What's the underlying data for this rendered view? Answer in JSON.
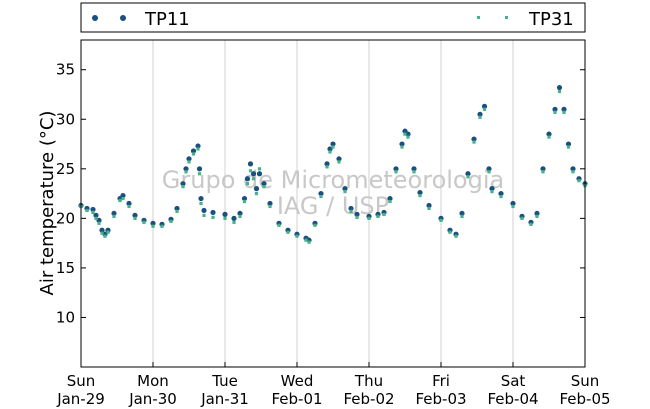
{
  "chart_data": {
    "type": "scatter",
    "title": "",
    "xlabel": "",
    "ylabel": "Air temperature (°C)",
    "ylim": [
      5,
      38
    ],
    "yticks": [
      10,
      15,
      20,
      25,
      30,
      35
    ],
    "x_ticks": [
      {
        "day": "Sun",
        "date": "Jan-29"
      },
      {
        "day": "Mon",
        "date": "Jan-30"
      },
      {
        "day": "Tue",
        "date": "Jan-31"
      },
      {
        "day": "Wed",
        "date": "Feb-01"
      },
      {
        "day": "Thu",
        "date": "Feb-02"
      },
      {
        "day": "Fri",
        "date": "Feb-03"
      },
      {
        "day": "Sat",
        "date": "Feb-04"
      },
      {
        "day": "Sun",
        "date": "Feb-05"
      }
    ],
    "grid": "vertical",
    "legend_position": "top",
    "watermark": [
      "Grupo de Micrometeorologia",
      "IAG / USP"
    ],
    "series": [
      {
        "name": "TP11",
        "color": "#1a4f80",
        "marker": "circle",
        "points": [
          [
            "Jan-29 00:00",
            21.3
          ],
          [
            "Jan-29 02:00",
            21.0
          ],
          [
            "Jan-29 04:00",
            20.9
          ],
          [
            "Jan-29 05:00",
            20.3
          ],
          [
            "Jan-29 06:00",
            19.8
          ],
          [
            "Jan-29 07:00",
            18.8
          ],
          [
            "Jan-29 08:00",
            18.4
          ],
          [
            "Jan-29 09:00",
            18.8
          ],
          [
            "Jan-29 11:00",
            20.5
          ],
          [
            "Jan-29 13:00",
            22.0
          ],
          [
            "Jan-29 14:00",
            22.3
          ],
          [
            "Jan-29 16:00",
            21.5
          ],
          [
            "Jan-29 18:00",
            20.3
          ],
          [
            "Jan-29 21:00",
            19.8
          ],
          [
            "Jan-30 00:00",
            19.5
          ],
          [
            "Jan-30 03:00",
            19.4
          ],
          [
            "Jan-30 06:00",
            19.9
          ],
          [
            "Jan-30 08:00",
            21.0
          ],
          [
            "Jan-30 10:00",
            23.5
          ],
          [
            "Jan-30 11:00",
            25.0
          ],
          [
            "Jan-30 12:00",
            26.0
          ],
          [
            "Jan-30 13:30",
            26.8
          ],
          [
            "Jan-30 15:00",
            27.3
          ],
          [
            "Jan-30 15:30",
            25.0
          ],
          [
            "Jan-30 16:00",
            22.0
          ],
          [
            "Jan-30 17:00",
            20.8
          ],
          [
            "Jan-30 20:00",
            20.6
          ],
          [
            "Jan-31 00:00",
            20.4
          ],
          [
            "Jan-31 03:00",
            20.0
          ],
          [
            "Jan-31 05:00",
            20.5
          ],
          [
            "Jan-31 06:30",
            22.0
          ],
          [
            "Jan-31 07:30",
            24.0
          ],
          [
            "Jan-31 08:30",
            25.5
          ],
          [
            "Jan-31 09:30",
            24.5
          ],
          [
            "Jan-31 10:30",
            23.0
          ],
          [
            "Jan-31 11:30",
            24.5
          ],
          [
            "Jan-31 13:00",
            23.5
          ],
          [
            "Jan-31 15:00",
            21.5
          ],
          [
            "Jan-31 18:00",
            19.5
          ],
          [
            "Jan-31 21:00",
            18.8
          ],
          [
            "Feb-01 00:00",
            18.4
          ],
          [
            "Feb-01 03:00",
            18.0
          ],
          [
            "Feb-01 04:00",
            17.8
          ],
          [
            "Feb-01 06:00",
            19.5
          ],
          [
            "Feb-01 08:00",
            22.5
          ],
          [
            "Feb-01 10:00",
            25.5
          ],
          [
            "Feb-01 11:00",
            27.0
          ],
          [
            "Feb-01 12:00",
            27.5
          ],
          [
            "Feb-01 14:00",
            26.0
          ],
          [
            "Feb-01 16:00",
            23.0
          ],
          [
            "Feb-01 18:00",
            21.0
          ],
          [
            "Feb-01 20:00",
            20.4
          ],
          [
            "Feb-02 00:00",
            20.2
          ],
          [
            "Feb-02 03:00",
            20.4
          ],
          [
            "Feb-02 05:00",
            20.6
          ],
          [
            "Feb-02 07:00",
            22.0
          ],
          [
            "Feb-02 09:00",
            25.0
          ],
          [
            "Feb-02 11:00",
            27.5
          ],
          [
            "Feb-02 12:00",
            28.8
          ],
          [
            "Feb-02 13:00",
            28.5
          ],
          [
            "Feb-02 15:00",
            25.0
          ],
          [
            "Feb-02 17:00",
            22.6
          ],
          [
            "Feb-02 20:00",
            21.3
          ],
          [
            "Feb-03 00:00",
            20.0
          ],
          [
            "Feb-03 03:00",
            18.8
          ],
          [
            "Feb-03 05:00",
            18.4
          ],
          [
            "Feb-03 07:00",
            20.5
          ],
          [
            "Feb-03 09:00",
            24.5
          ],
          [
            "Feb-03 11:00",
            28.0
          ],
          [
            "Feb-03 13:00",
            30.5
          ],
          [
            "Feb-03 14:30",
            31.3
          ],
          [
            "Feb-03 16:00",
            25.0
          ],
          [
            "Feb-03 17:00",
            23.0
          ],
          [
            "Feb-03 20:00",
            22.5
          ],
          [
            "Feb-04 00:00",
            21.5
          ],
          [
            "Feb-04 03:00",
            20.2
          ],
          [
            "Feb-04 06:00",
            19.6
          ],
          [
            "Feb-04 08:00",
            20.5
          ],
          [
            "Feb-04 10:00",
            25.0
          ],
          [
            "Feb-04 12:00",
            28.5
          ],
          [
            "Feb-04 14:00",
            31.0
          ],
          [
            "Feb-04 15:30",
            33.2
          ],
          [
            "Feb-04 17:00",
            31.0
          ],
          [
            "Feb-04 18:30",
            27.5
          ],
          [
            "Feb-04 20:00",
            25.0
          ],
          [
            "Feb-04 22:00",
            24.0
          ],
          [
            "Feb-05 00:00",
            23.5
          ]
        ]
      },
      {
        "name": "TP31",
        "color": "#45b38a",
        "marker": "square",
        "points": [
          [
            "Jan-29 00:00",
            21.2
          ],
          [
            "Jan-29 02:00",
            20.8
          ],
          [
            "Jan-29 04:00",
            20.6
          ],
          [
            "Jan-29 05:00",
            20.0
          ],
          [
            "Jan-29 06:00",
            19.5
          ],
          [
            "Jan-29 07:00",
            18.5
          ],
          [
            "Jan-29 08:00",
            18.2
          ],
          [
            "Jan-29 09:00",
            18.6
          ],
          [
            "Jan-29 11:00",
            20.2
          ],
          [
            "Jan-29 13:00",
            21.8
          ],
          [
            "Jan-29 14:00",
            22.0
          ],
          [
            "Jan-29 16:00",
            21.2
          ],
          [
            "Jan-29 18:00",
            20.0
          ],
          [
            "Jan-29 21:00",
            19.6
          ],
          [
            "Jan-30 00:00",
            19.2
          ],
          [
            "Jan-30 03:00",
            19.2
          ],
          [
            "Jan-30 06:00",
            19.7
          ],
          [
            "Jan-30 08:00",
            20.7
          ],
          [
            "Jan-30 10:00",
            23.2
          ],
          [
            "Jan-30 11:00",
            24.7
          ],
          [
            "Jan-30 12:00",
            25.7
          ],
          [
            "Jan-30 13:30",
            26.5
          ],
          [
            "Jan-30 15:00",
            27.0
          ],
          [
            "Jan-30 15:30",
            24.5
          ],
          [
            "Jan-30 16:00",
            21.5
          ],
          [
            "Jan-30 17:00",
            20.3
          ],
          [
            "Jan-30 20:00",
            20.1
          ],
          [
            "Jan-31 00:00",
            20.0
          ],
          [
            "Jan-31 03:00",
            19.6
          ],
          [
            "Jan-31 05:00",
            20.2
          ],
          [
            "Jan-31 06:30",
            21.7
          ],
          [
            "Jan-31 07:30",
            23.5
          ],
          [
            "Jan-31 08:30",
            24.8
          ],
          [
            "Jan-31 09:30",
            24.0
          ],
          [
            "Jan-31 10:30",
            22.5
          ],
          [
            "Jan-31 11:30",
            25.0
          ],
          [
            "Jan-31 13:00",
            23.2
          ],
          [
            "Jan-31 15:00",
            21.2
          ],
          [
            "Jan-31 18:00",
            19.3
          ],
          [
            "Jan-31 21:00",
            18.6
          ],
          [
            "Feb-01 00:00",
            18.2
          ],
          [
            "Feb-01 03:00",
            17.8
          ],
          [
            "Feb-01 04:00",
            17.6
          ],
          [
            "Feb-01 06:00",
            19.3
          ],
          [
            "Feb-01 08:00",
            22.2
          ],
          [
            "Feb-01 10:00",
            25.2
          ],
          [
            "Feb-01 11:00",
            26.7
          ],
          [
            "Feb-01 12:00",
            27.2
          ],
          [
            "Feb-01 14:00",
            25.7
          ],
          [
            "Feb-01 16:00",
            22.7
          ],
          [
            "Feb-01 18:00",
            20.7
          ],
          [
            "Feb-01 20:00",
            20.1
          ],
          [
            "Feb-02 00:00",
            20.0
          ],
          [
            "Feb-02 03:00",
            20.2
          ],
          [
            "Feb-02 05:00",
            20.4
          ],
          [
            "Feb-02 07:00",
            21.7
          ],
          [
            "Feb-02 09:00",
            24.7
          ],
          [
            "Feb-02 11:00",
            27.2
          ],
          [
            "Feb-02 12:00",
            28.5
          ],
          [
            "Feb-02 13:00",
            28.2
          ],
          [
            "Feb-02 15:00",
            24.7
          ],
          [
            "Feb-02 17:00",
            22.3
          ],
          [
            "Feb-02 20:00",
            21.0
          ],
          [
            "Feb-03 00:00",
            19.8
          ],
          [
            "Feb-03 03:00",
            18.6
          ],
          [
            "Feb-03 05:00",
            18.2
          ],
          [
            "Feb-03 07:00",
            20.2
          ],
          [
            "Feb-03 09:00",
            24.2
          ],
          [
            "Feb-03 11:00",
            27.7
          ],
          [
            "Feb-03 13:00",
            30.2
          ],
          [
            "Feb-03 14:30",
            31.0
          ],
          [
            "Feb-03 16:00",
            24.7
          ],
          [
            "Feb-03 17:00",
            22.7
          ],
          [
            "Feb-03 20:00",
            22.2
          ],
          [
            "Feb-04 00:00",
            21.2
          ],
          [
            "Feb-04 03:00",
            20.0
          ],
          [
            "Feb-04 06:00",
            19.4
          ],
          [
            "Feb-04 08:00",
            20.2
          ],
          [
            "Feb-04 10:00",
            24.7
          ],
          [
            "Feb-04 12:00",
            28.2
          ],
          [
            "Feb-04 14:00",
            30.7
          ],
          [
            "Feb-04 15:30",
            32.8
          ],
          [
            "Feb-04 17:00",
            30.7
          ],
          [
            "Feb-04 18:30",
            27.2
          ],
          [
            "Feb-04 20:00",
            24.7
          ],
          [
            "Feb-04 22:00",
            23.8
          ],
          [
            "Feb-05 00:00",
            23.3
          ]
        ]
      }
    ]
  }
}
